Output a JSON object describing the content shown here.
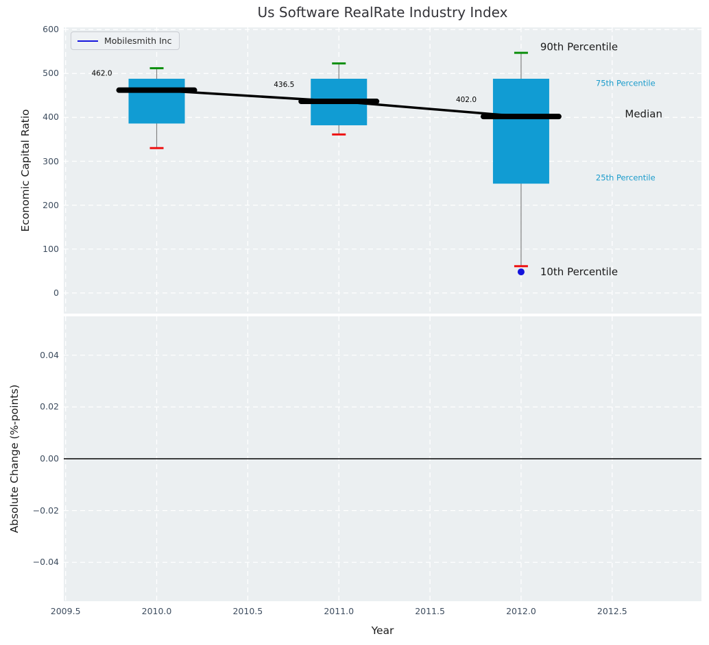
{
  "chart_data": [
    {
      "type": "boxplot",
      "title": "Us Software RealRate Industry Index",
      "xlabel": "",
      "ylabel": "Economic Capital Ratio",
      "xlim": [
        2009.49,
        2012.99
      ],
      "ylim": [
        -47,
        605
      ],
      "grid": true,
      "xticks": [
        {
          "label": "2009.5",
          "value": 2009.5
        },
        {
          "label": "2010.0",
          "value": 2010.0
        },
        {
          "label": "2010.5",
          "value": 2010.5
        },
        {
          "label": "2011.0",
          "value": 2011.0
        },
        {
          "label": "2011.5",
          "value": 2011.5
        },
        {
          "label": "2012.0",
          "value": 2012.0
        },
        {
          "label": "2012.5",
          "value": 2012.5
        }
      ],
      "xtick_labels_visible": false,
      "yticks": [
        {
          "label": "0",
          "value": 0
        },
        {
          "label": "100",
          "value": 100
        },
        {
          "label": "200",
          "value": 200
        },
        {
          "label": "300",
          "value": 300
        },
        {
          "label": "400",
          "value": 400
        },
        {
          "label": "500",
          "value": 500
        },
        {
          "label": "600",
          "value": 600
        }
      ],
      "legend": {
        "label": "Mobilesmith Inc",
        "line_color": "#1414DC",
        "position": "upper-left"
      },
      "boxes": [
        {
          "x": 2010,
          "p10": 330,
          "p25": 386,
          "median": 462.0,
          "p75": 488,
          "p90": 512,
          "median_label": "462.0"
        },
        {
          "x": 2011,
          "p10": 361,
          "p25": 382,
          "median": 436.5,
          "p75": 488,
          "p90": 523,
          "median_label": "436.5"
        },
        {
          "x": 2012,
          "p10": 61,
          "p25": 249,
          "median": 402.0,
          "p75": 488,
          "p90": 547,
          "median_label": "402.0"
        }
      ],
      "median_trend": {
        "x": [
          2010,
          2011,
          2012
        ],
        "y": [
          462.0,
          436.5,
          402.0
        ]
      },
      "company_points": [
        {
          "x": 2012,
          "y": 48,
          "series": "Mobilesmith Inc"
        }
      ],
      "percentile_labels": [
        {
          "text": "90th Percentile",
          "x": 2012.105,
          "y": 560,
          "color": "#1a1a1a",
          "size": 15
        },
        {
          "text": "75th Percentile",
          "x": 2012.41,
          "y": 477,
          "color": "#1A9BCB",
          "size": 11.5
        },
        {
          "text": "Median",
          "x": 2012.57,
          "y": 407,
          "color": "#1a1a1a",
          "size": 15
        },
        {
          "text": "25th Percentile",
          "x": 2012.41,
          "y": 262,
          "color": "#1A9BCB",
          "size": 11.5
        },
        {
          "text": "10th Percentile",
          "x": 2012.105,
          "y": 47,
          "color": "#1a1a1a",
          "size": 15
        }
      ],
      "colors": {
        "box_fill": "#119CD3",
        "cap_top": "#0B8E0B",
        "cap_bottom": "#EE1111",
        "whisker": "#808080",
        "median": "#000000",
        "company_point": "#1414DC",
        "grid": "#ffffff",
        "axes_bg": "#EBEFF1",
        "tick_label": "#3D4C5E"
      }
    },
    {
      "type": "line",
      "title": "",
      "xlabel": "Year",
      "ylabel": "Absolute Change (%-points)",
      "xlim": [
        2009.49,
        2012.99
      ],
      "ylim": [
        -0.055,
        0.055
      ],
      "grid": true,
      "xticks": [
        {
          "label": "2009.5",
          "value": 2009.5
        },
        {
          "label": "2010.0",
          "value": 2010.0
        },
        {
          "label": "2010.5",
          "value": 2010.5
        },
        {
          "label": "2011.0",
          "value": 2011.0
        },
        {
          "label": "2011.5",
          "value": 2011.5
        },
        {
          "label": "2012.0",
          "value": 2012.0
        },
        {
          "label": "2012.5",
          "value": 2012.5
        }
      ],
      "xtick_labels_visible": true,
      "yticks": [
        {
          "label": "−0.04",
          "value": -0.04
        },
        {
          "label": "−0.02",
          "value": -0.02
        },
        {
          "label": "0.00",
          "value": 0.0
        },
        {
          "label": "0.02",
          "value": 0.02
        },
        {
          "label": "0.04",
          "value": 0.04
        }
      ],
      "zero_line": {
        "y": 0,
        "color": "#000000"
      },
      "series": []
    }
  ]
}
